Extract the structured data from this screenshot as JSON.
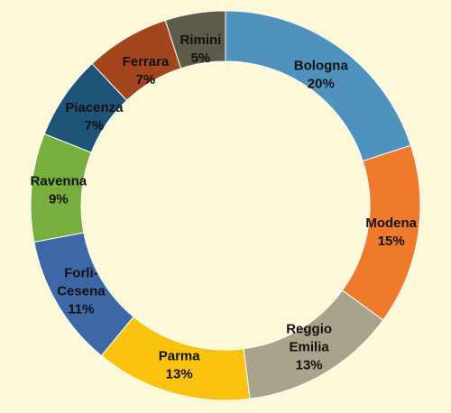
{
  "chart_data": {
    "type": "pie",
    "variant": "donut",
    "title": "",
    "start_angle_deg": 0,
    "direction": "clockwise",
    "slices": [
      {
        "label_lines": [
          "Bologna"
        ],
        "value": 20,
        "value_label": "20%",
        "color": "#4f92bd"
      },
      {
        "label_lines": [
          "Modena"
        ],
        "value": 15,
        "value_label": "15%",
        "color": "#ef7a2c"
      },
      {
        "label_lines": [
          "Reggio",
          "Emilia"
        ],
        "value": 13,
        "value_label": "13%",
        "color": "#a8a38a"
      },
      {
        "label_lines": [
          "Parma"
        ],
        "value": 13,
        "value_label": "13%",
        "color": "#f8c20f"
      },
      {
        "label_lines": [
          "Forlì-",
          "Cesena"
        ],
        "value": 11,
        "value_label": "11%",
        "color": "#3e68a5"
      },
      {
        "label_lines": [
          "Ravenna"
        ],
        "value": 9,
        "value_label": "9%",
        "color": "#78ae3e"
      },
      {
        "label_lines": [
          "Piacenza"
        ],
        "value": 7,
        "value_label": "7%",
        "color": "#1e5477"
      },
      {
        "label_lines": [
          "Ferrara"
        ],
        "value": 7,
        "value_label": "7%",
        "color": "#a3451d"
      },
      {
        "label_lines": [
          "Rimini"
        ],
        "value": 5,
        "value_label": "5%",
        "color": "#5d5a4a"
      }
    ]
  }
}
